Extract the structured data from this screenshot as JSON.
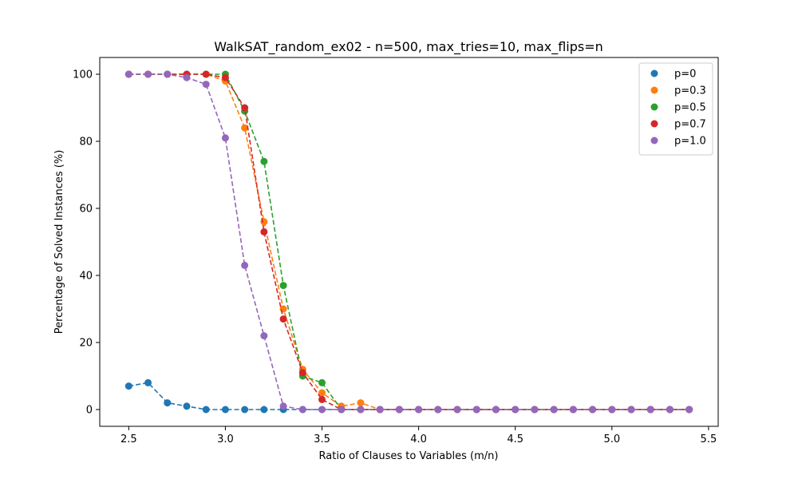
{
  "chart_data": {
    "type": "scatter",
    "title": "WalkSAT_random_ex02 - n=500, max_tries=10, max_flips=n",
    "xlabel": "Ratio of Clauses to Variables (m/n)",
    "ylabel": "Percentage of Solved Instances (%)",
    "xlim": [
      2.35,
      5.55
    ],
    "ylim": [
      -5,
      105
    ],
    "xticks": [
      2.5,
      3.0,
      3.5,
      4.0,
      4.5,
      5.0,
      5.5
    ],
    "xtick_labels": [
      "2.5",
      "3.0",
      "3.5",
      "4.0",
      "4.5",
      "5.0",
      "5.5"
    ],
    "yticks": [
      0,
      20,
      40,
      60,
      80,
      100
    ],
    "ytick_labels": [
      "0",
      "20",
      "40",
      "60",
      "80",
      "100"
    ],
    "grid": false,
    "legend_position": "top-right",
    "line_style": "dashed",
    "x": [
      2.5,
      2.6,
      2.7,
      2.8,
      2.9,
      3.0,
      3.1,
      3.2,
      3.3,
      3.4,
      3.5,
      3.6,
      3.7,
      3.8,
      3.9,
      4.0,
      4.1,
      4.2,
      4.3,
      4.4,
      4.5,
      4.6,
      4.7,
      4.8,
      4.9,
      5.0,
      5.1,
      5.2,
      5.3,
      5.4
    ],
    "series": [
      {
        "name": "p=0",
        "color": "#1f77b4",
        "values": [
          7,
          8,
          2,
          1,
          0,
          0,
          0,
          0,
          0,
          0,
          0,
          0,
          0,
          0,
          0,
          0,
          0,
          0,
          0,
          0,
          0,
          0,
          0,
          0,
          0,
          0,
          0,
          0,
          0,
          0
        ]
      },
      {
        "name": "p=0.3",
        "color": "#ff7f0e",
        "values": [
          100,
          100,
          100,
          100,
          100,
          98,
          84,
          56,
          30,
          12,
          5,
          1,
          2,
          0,
          0,
          0,
          0,
          0,
          0,
          0,
          0,
          0,
          0,
          0,
          0,
          0,
          0,
          0,
          0,
          0
        ]
      },
      {
        "name": "p=0.5",
        "color": "#2ca02c",
        "values": [
          100,
          100,
          100,
          100,
          100,
          100,
          89,
          74,
          37,
          10,
          8,
          0,
          0,
          0,
          0,
          0,
          0,
          0,
          0,
          0,
          0,
          0,
          0,
          0,
          0,
          0,
          0,
          0,
          0,
          0
        ]
      },
      {
        "name": "p=0.7",
        "color": "#d62728",
        "values": [
          100,
          100,
          100,
          100,
          100,
          99,
          90,
          53,
          27,
          11,
          3,
          0,
          0,
          0,
          0,
          0,
          0,
          0,
          0,
          0,
          0,
          0,
          0,
          0,
          0,
          0,
          0,
          0,
          0,
          0
        ]
      },
      {
        "name": "p=1.0",
        "color": "#9467bd",
        "values": [
          100,
          100,
          100,
          99,
          97,
          81,
          43,
          22,
          1,
          0,
          0,
          0,
          0,
          0,
          0,
          0,
          0,
          0,
          0,
          0,
          0,
          0,
          0,
          0,
          0,
          0,
          0,
          0,
          0,
          0
        ]
      }
    ]
  }
}
